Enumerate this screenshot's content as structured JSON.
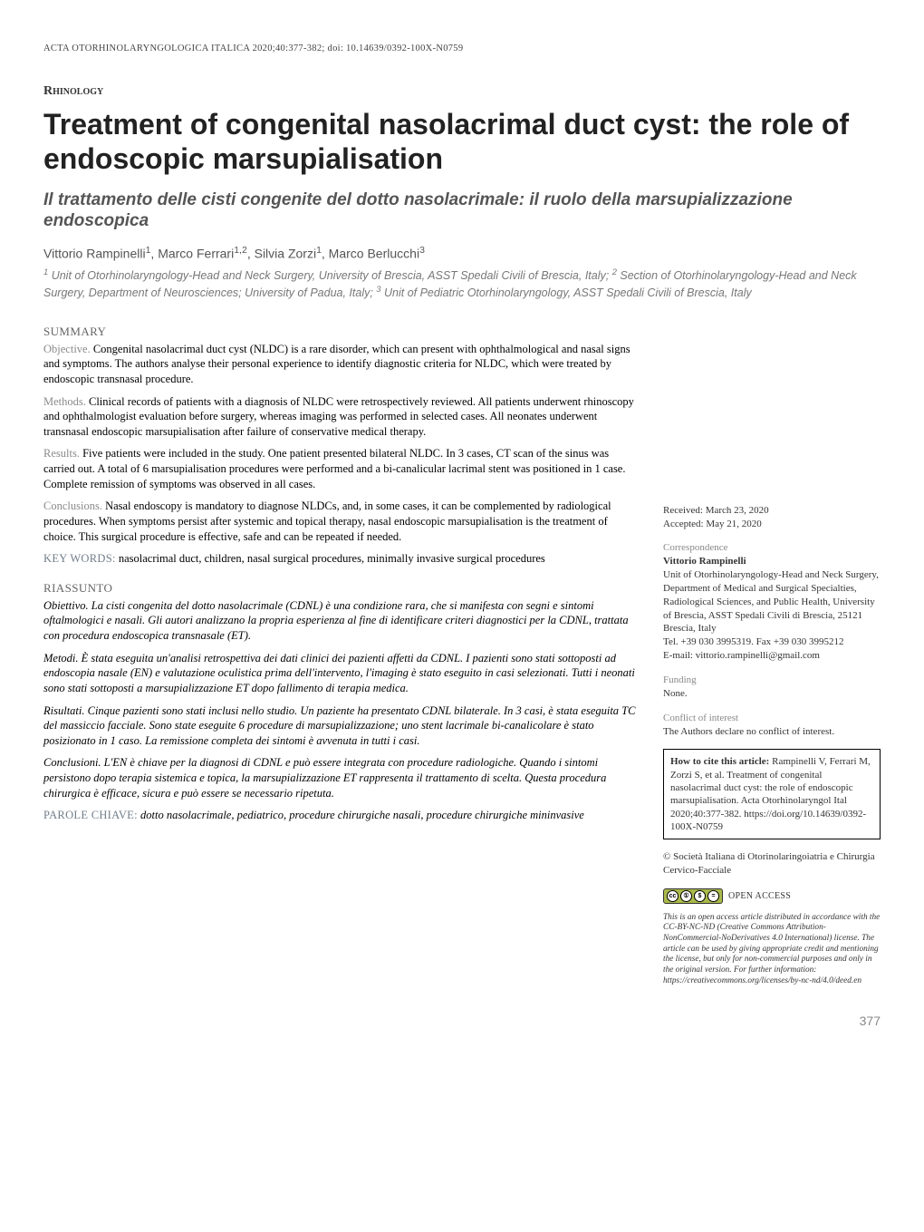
{
  "running_head": "ACTA OTORHINOLARYNGOLOGICA ITALICA 2020;40:377-382; doi: 10.14639/0392-100X-N0759",
  "section_tag": "Rhinology",
  "title": "Treatment of congenital nasolacrimal duct cyst: the role of endoscopic marsupialisation",
  "subtitle": "Il trattamento delle cisti congenite del dotto nasolacrimale: il ruolo della marsupializzazione endoscopica",
  "authors_html": "Vittorio Rampinelli<sup>1</sup>, Marco Ferrari<sup>1,2</sup>, Silvia Zorzi<sup>1</sup>, Marco Berlucchi<sup>3</sup>",
  "affiliations_html": "<sup>1</sup> Unit of Otorhinolaryngology-Head and Neck Surgery, University of Brescia, ASST Spedali Civili of Brescia, Italy; <sup>2</sup> Section of Otorhinolaryngology-Head and Neck Surgery, Department of Neurosciences; University of Padua, Italy; <sup>3</sup> Unit of Pediatric Otorhinolaryngology, ASST Spedali Civili of Brescia, Italy",
  "summary": {
    "head": "SUMMARY",
    "objective_label": "Objective.",
    "objective": " Congenital nasolacrimal duct cyst (NLDC) is a rare disorder, which can present with ophthalmological and nasal signs and symptoms. The authors analyse their personal experience to identify diagnostic criteria for NLDC, which were treated by endoscopic transnasal procedure.",
    "methods_label": "Methods.",
    "methods": " Clinical records of patients with a diagnosis of NLDC were retrospectively reviewed. All patients underwent rhinoscopy and ophthalmologist evaluation before surgery, whereas imaging was performed in selected cases. All neonates underwent transnasal endoscopic marsupialisation after failure of conservative medical therapy.",
    "results_label": "Results.",
    "results": " Five patients were included in the study. One patient presented bilateral NLDC. In 3 cases, CT scan of the sinus was carried out. A total of 6 marsupialisation procedures were performed and a bi-canalicular lacrimal stent was positioned in 1 case. Complete remission of symptoms was observed in all cases.",
    "conclusions_label": "Conclusions.",
    "conclusions": " Nasal endoscopy is mandatory to diagnose NLDCs, and, in some cases, it can be complemented by radiological procedures. When symptoms persist after systemic and topical therapy, nasal endoscopic marsupialisation is the treatment of choice. This surgical procedure is effective, safe and can be repeated if needed."
  },
  "keywords": {
    "label": "KEY WORDS:",
    "text": " nasolacrimal duct, children, nasal surgical procedures, minimally invasive surgical procedures"
  },
  "riassunto": {
    "head": "RIASSUNTO",
    "obiettivo_label": "Obiettivo.",
    "obiettivo": " La cisti congenita del dotto nasolacrimale (CDNL) è una condizione rara, che si manifesta con segni e sintomi oftalmologici e nasali. Gli autori analizzano la propria esperienza al fine di identificare criteri diagnostici per la CDNL, trattata con procedura endoscopica transnasale (ET).",
    "metodi_label": "Metodi.",
    "metodi": " È stata eseguita un'analisi retrospettiva dei dati clinici dei pazienti affetti da CDNL. I pazienti sono stati sottoposti ad endoscopia nasale (EN) e valutazione oculistica prima dell'intervento, l'imaging è stato eseguito in casi selezionati. Tutti i neonati sono stati sottoposti a marsupializzazione ET dopo fallimento di terapia medica.",
    "risultati_label": "Risultati.",
    "risultati": " Cinque pazienti sono stati inclusi nello studio. Un paziente ha presentato CDNL bilaterale. In 3 casi, è stata eseguita TC del massiccio facciale. Sono state eseguite 6 procedure di marsupializzazione; uno stent lacrimale bi-canalicolare è stato posizionato in 1 caso. La remissione completa dei sintomi è avvenuta in tutti i casi.",
    "conclusioni_label": "Conclusioni.",
    "conclusioni": " L'EN è chiave per la diagnosi di CDNL e può essere integrata con procedure radiologiche. Quando i sintomi persistono dopo terapia sistemica e topica, la marsupializzazione ET rappresenta il trattamento di scelta. Questa procedura chirurgica è efficace, sicura e può essere se necessario ripetuta."
  },
  "parole": {
    "label": "PAROLE CHIAVE:",
    "text": " dotto nasolacrimale, pediatrico, procedure chirurgiche nasali, procedure chirurgiche mininvasive"
  },
  "sidebar": {
    "received": "Received: March 23, 2020",
    "accepted": "Accepted: May 21, 2020",
    "corr_label": "Correspondence",
    "corr_name": "Vittorio Rampinelli",
    "corr_body": "Unit of Otorhinolaryngology-Head and Neck Surgery, Department of Medical and Surgical Specialties, Radiological Sciences, and Public Health, University of Brescia, ASST Spedali Civili di Brescia, 25121 Brescia, Italy",
    "corr_tel": "Tel. +39 030 3995319. Fax +39 030 3995212",
    "corr_email": "E-mail: vittorio.rampinelli@gmail.com",
    "funding_label": "Funding",
    "funding_text": "None.",
    "coi_label": "Conflict of interest",
    "coi_text": "The Authors declare no conflict of interest.",
    "cite_how": "How to cite this article:",
    "cite_text": " Rampinelli V, Ferrari M, Zorzi S, et al. Treatment of congenital nasolacrimal duct cyst: the role of endoscopic marsupialisation. Acta Otorhinolaryngol Ital 2020;40:377-382. https://doi.org/10.14639/0392-100X-N0759",
    "copyright": "© Società Italiana di Otorinolaringoiatria e Chirurgia Cervico-Facciale",
    "open_access": "OPEN ACCESS",
    "license": "This is an open access article distributed in accordance with the CC-BY-NC-ND (Creative Commons Attribution-NonCommercial-NoDerivatives 4.0 International) license. The article can be used by giving appropriate credit and mentioning the license, but only for non-commercial purposes and only in the original version. For further information: https://creativecommons.org/licenses/by-nc-nd/4.0/deed.en"
  },
  "pagenum": "377"
}
